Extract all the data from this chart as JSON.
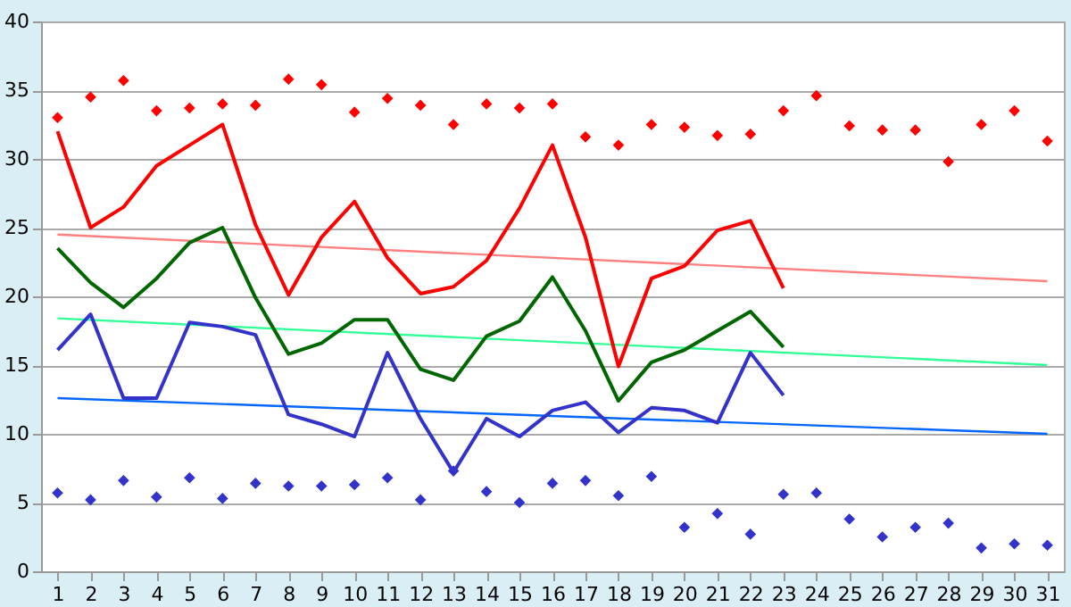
{
  "chart_data": {
    "type": "line",
    "x": [
      1,
      2,
      3,
      4,
      5,
      6,
      7,
      8,
      9,
      10,
      11,
      12,
      13,
      14,
      15,
      16,
      17,
      18,
      19,
      20,
      21,
      22,
      23,
      24,
      25,
      26,
      27,
      28,
      29,
      30,
      31
    ],
    "xlim": [
      0.5,
      31.5
    ],
    "xticks": [
      1,
      2,
      3,
      4,
      5,
      6,
      7,
      8,
      9,
      10,
      11,
      12,
      13,
      14,
      15,
      16,
      17,
      18,
      19,
      20,
      21,
      22,
      23,
      24,
      25,
      26,
      27,
      28,
      29,
      30,
      31
    ],
    "ylim": [
      0,
      40
    ],
    "yticks": [
      0,
      5,
      10,
      15,
      20,
      25,
      30,
      35,
      40
    ],
    "grid": "y",
    "series": [
      {
        "type": "scatter",
        "marker": "diamond",
        "color": "#ff0000",
        "values": [
          33,
          34.5,
          35.7,
          33.5,
          33.7,
          34,
          33.9,
          35.8,
          35.4,
          33.4,
          34.4,
          33.9,
          32.5,
          34,
          33.7,
          34,
          31.6,
          31,
          32.5,
          32.3,
          31.7,
          31.8,
          33.5,
          34.6,
          32.4,
          32.1,
          32.1,
          29.8,
          32.5,
          33.5,
          31.3
        ]
      },
      {
        "type": "scatter",
        "marker": "diamond",
        "color": "#3333cc",
        "values": [
          5.7,
          5.2,
          6.6,
          5.4,
          6.8,
          5.3,
          6.4,
          6.2,
          6.2,
          6.3,
          6.8,
          5.2,
          7.3,
          5.8,
          5.0,
          6.4,
          6.6,
          5.5,
          6.9,
          3.2,
          4.2,
          2.7,
          5.6,
          5.7,
          3.8,
          2.5,
          3.2,
          3.5,
          1.7,
          2.0,
          1.9
        ]
      },
      {
        "type": "line",
        "color": "#ff8080",
        "x": [
          1,
          31
        ],
        "values": [
          24.5,
          21.1
        ]
      },
      {
        "type": "line",
        "color": "#33ff99",
        "x": [
          1,
          31
        ],
        "values": [
          18.4,
          15.0
        ]
      },
      {
        "type": "line",
        "color": "#0066ff",
        "x": [
          1,
          31
        ],
        "values": [
          12.6,
          10.0
        ]
      },
      {
        "color": "#ff0000",
        "x": [
          1,
          2,
          3,
          4,
          5,
          6,
          7,
          8,
          9,
          10,
          11,
          12,
          13,
          14,
          15,
          16,
          17,
          18,
          19,
          20,
          21,
          22,
          23
        ],
        "values": [
          32,
          25,
          26.5,
          29.5,
          31,
          32.5,
          25.2,
          20.1,
          24.3,
          26.9,
          22.8,
          20.2,
          20.7,
          22.6,
          26.4,
          31,
          24.3,
          14.9,
          21.3,
          22.2,
          24.8,
          25.5,
          20.6
        ]
      },
      {
        "color": "#006600",
        "x": [
          1,
          2,
          3,
          4,
          5,
          6,
          7,
          8,
          9,
          10,
          11,
          12,
          13,
          14,
          15,
          16,
          17,
          18,
          19,
          20,
          21,
          22,
          23
        ],
        "values": [
          23.5,
          21,
          19.2,
          21.3,
          23.9,
          25,
          19.9,
          15.8,
          16.6,
          18.3,
          18.3,
          14.7,
          13.9,
          17.1,
          18.2,
          21.4,
          17.5,
          12.4,
          15.2,
          16.1,
          17.5,
          18.9,
          16.3
        ]
      },
      {
        "color": "#3333cc",
        "x": [
          1,
          2,
          3,
          4,
          5,
          6,
          7,
          8,
          9,
          10,
          11,
          12,
          13,
          14,
          15,
          16,
          17,
          18,
          19,
          20,
          21,
          22,
          23
        ],
        "values": [
          16.1,
          18.7,
          12.6,
          12.6,
          18.1,
          17.8,
          17.2,
          11.4,
          10.7,
          9.8,
          15.9,
          11.1,
          7.2,
          11.1,
          9.8,
          11.7,
          12.3,
          10.1,
          11.9,
          11.7,
          10.8,
          15.9,
          12.8
        ]
      }
    ]
  }
}
